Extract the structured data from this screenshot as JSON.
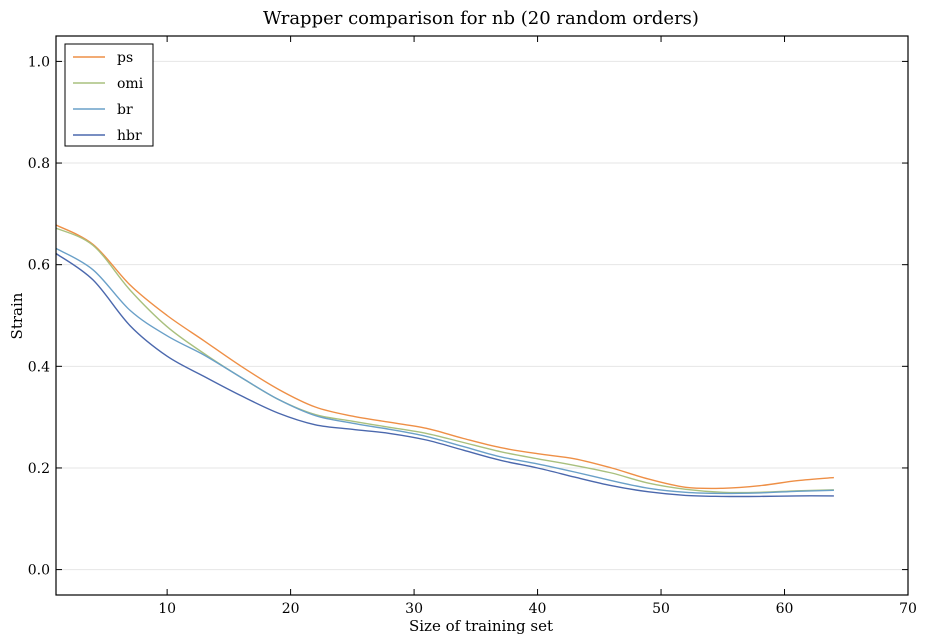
{
  "chart_data": {
    "type": "line",
    "title": "Wrapper comparison for nb (20 random orders)",
    "xlabel": "Size of training set",
    "ylabel": "Strain",
    "xlim": [
      1,
      70
    ],
    "ylim": [
      -0.05,
      1.05
    ],
    "xticks": [
      10,
      20,
      30,
      40,
      50,
      60,
      70
    ],
    "yticks": [
      0.0,
      0.2,
      0.4,
      0.6,
      0.8,
      1.0
    ],
    "ytick_labels": [
      "0.0",
      "0.2",
      "0.4",
      "0.6",
      "0.8",
      "1.0"
    ],
    "grid": "horizontal",
    "legend_position": "top-left",
    "x": [
      1,
      4,
      7,
      10,
      13,
      16,
      19,
      22,
      25,
      28,
      31,
      34,
      37,
      40,
      43,
      46,
      49,
      52,
      55,
      58,
      61,
      64
    ],
    "series": [
      {
        "name": "ps",
        "color": "#ee8f46",
        "values": [
          0.678,
          0.64,
          0.56,
          0.5,
          0.45,
          0.4,
          0.355,
          0.32,
          0.302,
          0.29,
          0.278,
          0.258,
          0.24,
          0.228,
          0.218,
          0.2,
          0.178,
          0.162,
          0.16,
          0.165,
          0.175,
          0.181
        ]
      },
      {
        "name": "omi",
        "color": "#a9c07e",
        "values": [
          0.672,
          0.638,
          0.55,
          0.478,
          0.425,
          0.378,
          0.335,
          0.305,
          0.292,
          0.28,
          0.268,
          0.25,
          0.232,
          0.218,
          0.205,
          0.19,
          0.17,
          0.158,
          0.152,
          0.152,
          0.155,
          0.157
        ]
      },
      {
        "name": "br",
        "color": "#6aa0c8",
        "values": [
          0.632,
          0.59,
          0.51,
          0.46,
          0.422,
          0.378,
          0.335,
          0.303,
          0.288,
          0.276,
          0.262,
          0.242,
          0.222,
          0.208,
          0.192,
          0.175,
          0.16,
          0.152,
          0.15,
          0.151,
          0.154,
          0.156
        ]
      },
      {
        "name": "hbr",
        "color": "#4b68ad",
        "values": [
          0.622,
          0.57,
          0.48,
          0.42,
          0.38,
          0.342,
          0.308,
          0.285,
          0.276,
          0.268,
          0.255,
          0.235,
          0.215,
          0.2,
          0.182,
          0.165,
          0.153,
          0.146,
          0.144,
          0.144,
          0.145,
          0.145
        ]
      }
    ]
  }
}
